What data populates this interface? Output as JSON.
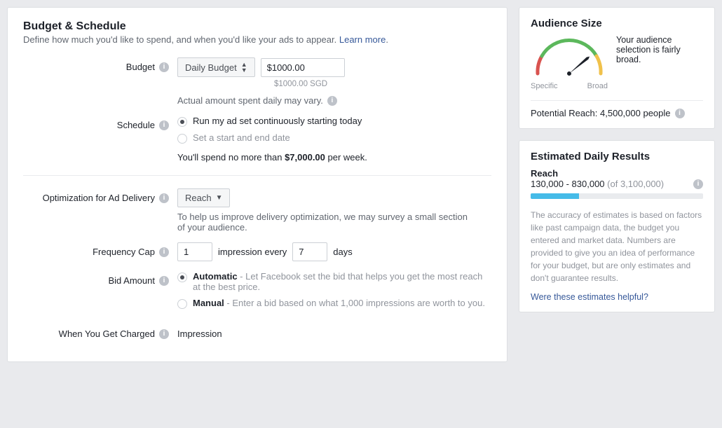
{
  "section": {
    "title": "Budget & Schedule",
    "subtitle_prefix": "Define how much you'd like to spend, and when you'd like your ads to appear. ",
    "learn_more": "Learn more"
  },
  "budget": {
    "label": "Budget",
    "type_label": "Daily Budget",
    "amount": "$1000.00",
    "currency_note": "$1000.00 SGD",
    "vary_note": "Actual amount spent daily may vary."
  },
  "schedule": {
    "label": "Schedule",
    "opt_continuous": "Run my ad set continuously starting today",
    "opt_range": "Set a start and end date",
    "selected": "continuous",
    "spend_note_prefix": "You'll spend no more than ",
    "spend_note_bold": "$7,000.00",
    "spend_note_suffix": " per week."
  },
  "optimization": {
    "label": "Optimization for Ad Delivery",
    "value": "Reach",
    "help": "To help us improve delivery optimization, we may survey a small section of your audience."
  },
  "frequency": {
    "label": "Frequency Cap",
    "impressions": "1",
    "mid_text": "impression every",
    "days": "7",
    "unit": "days"
  },
  "bid": {
    "label": "Bid Amount",
    "auto_label": "Automatic",
    "auto_desc": " - Let Facebook set the bid that helps you get the most reach at the best price.",
    "manual_label": "Manual",
    "manual_desc": " - Enter a bid based on what 1,000 impressions are worth to you.",
    "selected": "auto"
  },
  "charged": {
    "label": "When You Get Charged",
    "value": "Impression"
  },
  "audience": {
    "title": "Audience Size",
    "desc": "Your audience selection is fairly broad.",
    "specific": "Specific",
    "broad": "Broad",
    "potential_label": "Potential Reach: ",
    "potential_value": "4,500,000 people",
    "gauge": {
      "needle_angle": 45,
      "colors": {
        "red": "#d9534f",
        "yellow": "#f0b74a",
        "green": "#5cb85c"
      }
    }
  },
  "estimates": {
    "title": "Estimated Daily Results",
    "reach_label": "Reach",
    "reach_range": "130,000 - 830,000",
    "reach_of": " (of 3,100,000)",
    "progress_pct": 28,
    "disclaimer": "The accuracy of estimates is based on factors like past campaign data, the budget you entered and market data. Numbers are provided to give you an idea of performance for your budget, but are only estimates and don't guarantee results.",
    "helpful": "Were these estimates helpful?"
  }
}
